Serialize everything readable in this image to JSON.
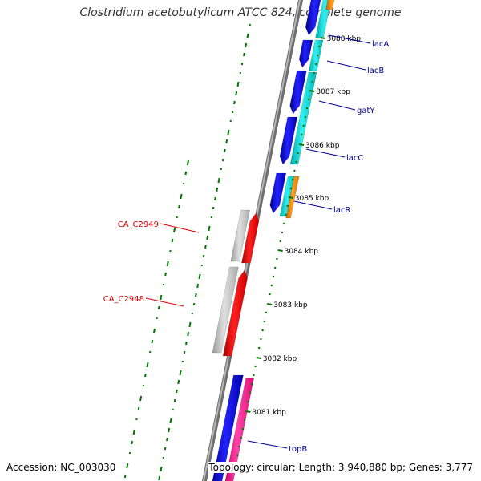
{
  "title": "Clostridium acetobutylicum ATCC 824, complete genome",
  "footer": {
    "accession": "Accession: NC_003030",
    "summary": "Topology: circular; Length: 3,940,880 bp; Genes: 3,777"
  },
  "scale_labels": [
    "3088 kbp",
    "3087 kbp",
    "3086 kbp",
    "3085 kbp",
    "3084 kbp",
    "3083 kbp",
    "3082 kbp",
    "3081 kbp"
  ],
  "gene_labels": {
    "right": [
      "lacA",
      "lacB",
      "gatY",
      "lacC",
      "lacR",
      "topB"
    ],
    "left": [
      "CA_C2949",
      "CA_C2948"
    ]
  },
  "colors": {
    "backbone": "#888888",
    "forward_cds": "#0000ee",
    "forward_rna": "#00cccc",
    "misc": "#ff8c00",
    "reverse_cds": "#ee0000",
    "reverse_other": "#bbbbbb",
    "topB_partner": "#ff1493",
    "right_label": "#000099",
    "left_label": "#dd0000",
    "gc_marks": "#007700"
  }
}
